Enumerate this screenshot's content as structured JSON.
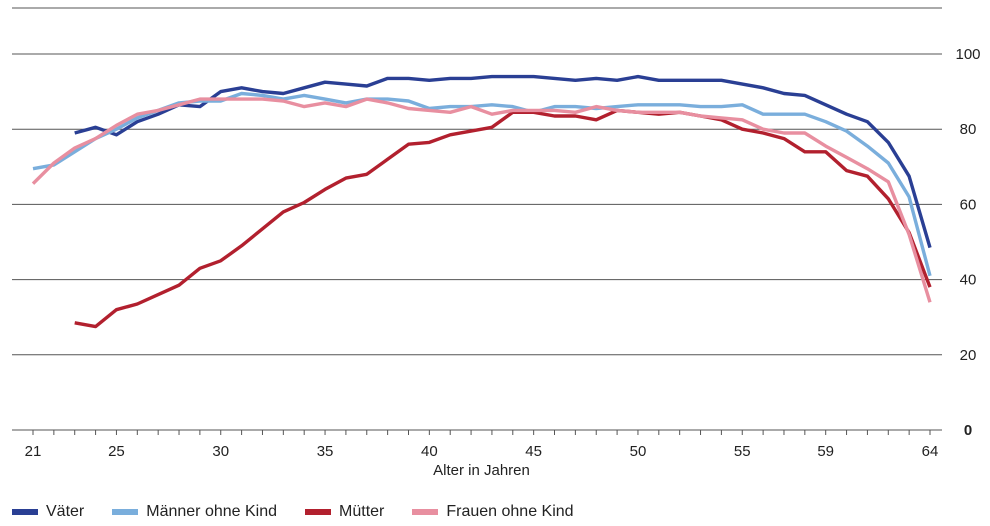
{
  "chart_data": {
    "type": "line",
    "title": "",
    "xlabel": "Alter in Jahren",
    "ylabel": "",
    "xlim": [
      21,
      64
    ],
    "ylim": [
      0,
      100
    ],
    "x_ticks": [
      21,
      25,
      30,
      35,
      40,
      45,
      50,
      55,
      59,
      64
    ],
    "y_ticks": [
      0,
      20,
      40,
      60,
      80,
      100
    ],
    "grid": "horizontal",
    "legend": "bottom",
    "series": [
      {
        "name": "Väter",
        "color": "#2a3f94",
        "x": [
          23,
          24,
          25,
          26,
          27,
          28,
          29,
          30,
          31,
          32,
          33,
          34,
          35,
          36,
          37,
          38,
          39,
          40,
          41,
          42,
          43,
          44,
          45,
          46,
          47,
          48,
          49,
          50,
          51,
          52,
          53,
          54,
          55,
          56,
          57,
          58,
          59,
          60,
          61,
          62,
          63,
          64
        ],
        "values": [
          79,
          80.5,
          78.5,
          82,
          84,
          86.5,
          86,
          90,
          91,
          90,
          89.5,
          91,
          92.5,
          92,
          91.5,
          93.5,
          93.5,
          93,
          93.5,
          93.5,
          94,
          94,
          94,
          93.5,
          93,
          93.5,
          93,
          94,
          93,
          93,
          93,
          93,
          92,
          91,
          89.5,
          89,
          86.5,
          84,
          82,
          76.5,
          67.5,
          48.5
        ]
      },
      {
        "name": "Männer ohne Kind",
        "color": "#7aaedc",
        "x": [
          21,
          22,
          23,
          24,
          25,
          26,
          27,
          28,
          29,
          30,
          31,
          32,
          33,
          34,
          35,
          36,
          37,
          38,
          39,
          40,
          41,
          42,
          43,
          44,
          45,
          46,
          47,
          48,
          49,
          50,
          51,
          52,
          53,
          54,
          55,
          56,
          57,
          58,
          59,
          60,
          61,
          62,
          63,
          64
        ],
        "values": [
          69.5,
          70.5,
          74,
          77.5,
          80,
          83,
          85,
          87,
          87.5,
          87.5,
          89.5,
          89,
          88,
          89,
          88,
          87,
          88,
          88,
          87.5,
          85.5,
          86,
          86,
          86.5,
          86,
          84.5,
          86,
          86,
          85.5,
          86,
          86.5,
          86.5,
          86.5,
          86,
          86,
          86.5,
          84,
          84,
          84,
          82,
          79.5,
          75.5,
          71,
          62,
          41
        ]
      },
      {
        "name": "Mütter",
        "color": "#b2202e",
        "x": [
          23,
          24,
          25,
          26,
          27,
          28,
          29,
          30,
          31,
          32,
          33,
          34,
          35,
          36,
          37,
          38,
          39,
          40,
          41,
          42,
          43,
          44,
          45,
          46,
          47,
          48,
          49,
          50,
          51,
          52,
          53,
          54,
          55,
          56,
          57,
          58,
          59,
          60,
          61,
          62,
          63,
          64
        ],
        "values": [
          28.5,
          27.5,
          32,
          33.5,
          36,
          38.5,
          43,
          45,
          49,
          53.5,
          58,
          60.5,
          64,
          67,
          68,
          72,
          76,
          76.5,
          78.5,
          79.5,
          80.5,
          84.5,
          84.5,
          83.5,
          83.5,
          82.5,
          85,
          84.5,
          84,
          84.5,
          83.5,
          82.5,
          80,
          79,
          77.5,
          74,
          74,
          69,
          67.5,
          61.5,
          52.5,
          38
        ]
      },
      {
        "name": "Frauen ohne Kind",
        "color": "#e88fa0",
        "x": [
          21,
          22,
          23,
          24,
          25,
          26,
          27,
          28,
          29,
          30,
          31,
          32,
          33,
          34,
          35,
          36,
          37,
          38,
          39,
          40,
          41,
          42,
          43,
          44,
          45,
          46,
          47,
          48,
          49,
          50,
          51,
          52,
          53,
          54,
          55,
          56,
          57,
          58,
          59,
          60,
          61,
          62,
          63,
          64
        ],
        "values": [
          65.5,
          71,
          75,
          77.5,
          81,
          84,
          85,
          86.5,
          88,
          88,
          88,
          88,
          87.5,
          86,
          87,
          86,
          88,
          87,
          85.5,
          85,
          84.5,
          86,
          84,
          85,
          85,
          85,
          84.5,
          86,
          85,
          84.5,
          84.5,
          84.5,
          83.5,
          83,
          82.5,
          80,
          79,
          79,
          75.5,
          72.5,
          69.5,
          66,
          52,
          34
        ]
      }
    ]
  }
}
